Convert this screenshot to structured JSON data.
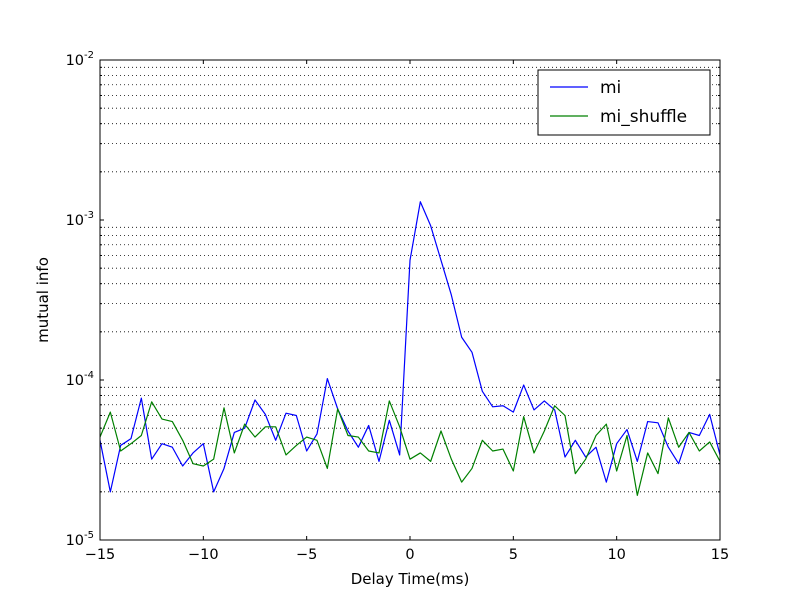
{
  "chart_data": {
    "type": "line",
    "title": "",
    "xlabel": "Delay Time(ms)",
    "ylabel": "mutual info",
    "xlim": [
      -15,
      15
    ],
    "ylim": [
      1e-05,
      0.01
    ],
    "yscale": "log",
    "xticks": [
      -15,
      -10,
      -5,
      0,
      5,
      10,
      15
    ],
    "xtick_labels": [
      "−15",
      "−10",
      "−5",
      "0",
      "5",
      "10",
      "15"
    ],
    "yticks": [
      {
        "value": 1e-05,
        "base": "10",
        "exp": "-5"
      },
      {
        "value": 0.0001,
        "base": "10",
        "exp": "-4"
      },
      {
        "value": 0.001,
        "base": "10",
        "exp": "-3"
      },
      {
        "value": 0.01,
        "base": "10",
        "exp": "-2"
      }
    ],
    "grid": "minor y, dotted",
    "legend_position": "top-right",
    "series": [
      {
        "name": "mi",
        "color": "#0000ff",
        "points": [
          [
            -15.0,
            4.2e-05
          ],
          [
            -14.5,
            2e-05
          ],
          [
            -14.0,
            3.9e-05
          ],
          [
            -13.5,
            4.3e-05
          ],
          [
            -13.0,
            7.7e-05
          ],
          [
            -12.5,
            3.2e-05
          ],
          [
            -12.0,
            4e-05
          ],
          [
            -11.5,
            3.8e-05
          ],
          [
            -11.0,
            2.9e-05
          ],
          [
            -10.5,
            3.5e-05
          ],
          [
            -10.0,
            4e-05
          ],
          [
            -9.5,
            2e-05
          ],
          [
            -9.0,
            2.8e-05
          ],
          [
            -8.5,
            4.7e-05
          ],
          [
            -8.0,
            5e-05
          ],
          [
            -7.5,
            7.5e-05
          ],
          [
            -7.0,
            6.1e-05
          ],
          [
            -6.5,
            4.2e-05
          ],
          [
            -6.0,
            6.2e-05
          ],
          [
            -5.5,
            6e-05
          ],
          [
            -5.0,
            3.6e-05
          ],
          [
            -4.5,
            4.6e-05
          ],
          [
            -4.0,
            0.000102
          ],
          [
            -3.5,
            6.6e-05
          ],
          [
            -3.0,
            4.8e-05
          ],
          [
            -2.5,
            3.8e-05
          ],
          [
            -2.0,
            5.2e-05
          ],
          [
            -1.5,
            3.1e-05
          ],
          [
            -1.0,
            5.6e-05
          ],
          [
            -0.5,
            3.4e-05
          ],
          [
            0.0,
            0.00056
          ],
          [
            0.5,
            0.0013
          ],
          [
            1.0,
            0.00092
          ],
          [
            1.5,
            0.00056
          ],
          [
            2.0,
            0.00034
          ],
          [
            2.5,
            0.000185
          ],
          [
            3.0,
            0.000149
          ],
          [
            3.5,
            8.5e-05
          ],
          [
            4.0,
            6.8e-05
          ],
          [
            4.5,
            6.9e-05
          ],
          [
            5.0,
            6.3e-05
          ],
          [
            5.5,
            9.3e-05
          ],
          [
            6.0,
            6.5e-05
          ],
          [
            6.5,
            7.4e-05
          ],
          [
            7.0,
            6.5e-05
          ],
          [
            7.5,
            3.3e-05
          ],
          [
            8.0,
            4.2e-05
          ],
          [
            8.5,
            3.3e-05
          ],
          [
            9.0,
            3.8e-05
          ],
          [
            9.5,
            2.3e-05
          ],
          [
            10.0,
            4e-05
          ],
          [
            10.5,
            4.9e-05
          ],
          [
            11.0,
            3.1e-05
          ],
          [
            11.5,
            5.5e-05
          ],
          [
            12.0,
            5.4e-05
          ],
          [
            12.5,
            3.8e-05
          ],
          [
            13.0,
            3e-05
          ],
          [
            13.5,
            4.7e-05
          ],
          [
            14.0,
            4.5e-05
          ],
          [
            14.5,
            6.1e-05
          ],
          [
            15.0,
            3.4e-05
          ]
        ]
      },
      {
        "name": "mi_shuffle",
        "color": "#008000",
        "points": [
          [
            -15.0,
            4.4e-05
          ],
          [
            -14.5,
            6.3e-05
          ],
          [
            -14.0,
            3.6e-05
          ],
          [
            -13.5,
            4e-05
          ],
          [
            -13.0,
            4.5e-05
          ],
          [
            -12.5,
            7.3e-05
          ],
          [
            -12.0,
            5.7e-05
          ],
          [
            -11.5,
            5.5e-05
          ],
          [
            -11.0,
            4.2e-05
          ],
          [
            -10.5,
            3e-05
          ],
          [
            -10.0,
            2.9e-05
          ],
          [
            -9.5,
            3.2e-05
          ],
          [
            -9.0,
            6.7e-05
          ],
          [
            -8.5,
            3.5e-05
          ],
          [
            -8.0,
            5.3e-05
          ],
          [
            -7.5,
            4.4e-05
          ],
          [
            -7.0,
            5.1e-05
          ],
          [
            -6.5,
            5.1e-05
          ],
          [
            -6.0,
            3.4e-05
          ],
          [
            -5.5,
            3.9e-05
          ],
          [
            -5.0,
            4.4e-05
          ],
          [
            -4.5,
            4.2e-05
          ],
          [
            -4.0,
            2.8e-05
          ],
          [
            -3.5,
            6.6e-05
          ],
          [
            -3.0,
            4.5e-05
          ],
          [
            -2.5,
            4.4e-05
          ],
          [
            -2.0,
            3.6e-05
          ],
          [
            -1.5,
            3.5e-05
          ],
          [
            -1.0,
            7.4e-05
          ],
          [
            -0.5,
            5.1e-05
          ],
          [
            0.0,
            3.2e-05
          ],
          [
            0.5,
            3.5e-05
          ],
          [
            1.0,
            3.1e-05
          ],
          [
            1.5,
            4.8e-05
          ],
          [
            2.0,
            3.2e-05
          ],
          [
            2.5,
            2.3e-05
          ],
          [
            3.0,
            2.8e-05
          ],
          [
            3.5,
            4.2e-05
          ],
          [
            4.0,
            3.6e-05
          ],
          [
            4.5,
            3.7e-05
          ],
          [
            5.0,
            2.7e-05
          ],
          [
            5.5,
            5.9e-05
          ],
          [
            6.0,
            3.5e-05
          ],
          [
            6.5,
            4.8e-05
          ],
          [
            7.0,
            6.9e-05
          ],
          [
            7.5,
            6e-05
          ],
          [
            8.0,
            2.6e-05
          ],
          [
            8.5,
            3.2e-05
          ],
          [
            9.0,
            4.5e-05
          ],
          [
            9.5,
            5.3e-05
          ],
          [
            10.0,
            2.7e-05
          ],
          [
            10.5,
            4.5e-05
          ],
          [
            11.0,
            1.9e-05
          ],
          [
            11.5,
            3.5e-05
          ],
          [
            12.0,
            2.6e-05
          ],
          [
            12.5,
            5.8e-05
          ],
          [
            13.0,
            3.8e-05
          ],
          [
            13.5,
            4.7e-05
          ],
          [
            14.0,
            3.6e-05
          ],
          [
            14.5,
            4.1e-05
          ],
          [
            15.0,
            3.1e-05
          ]
        ]
      }
    ]
  }
}
